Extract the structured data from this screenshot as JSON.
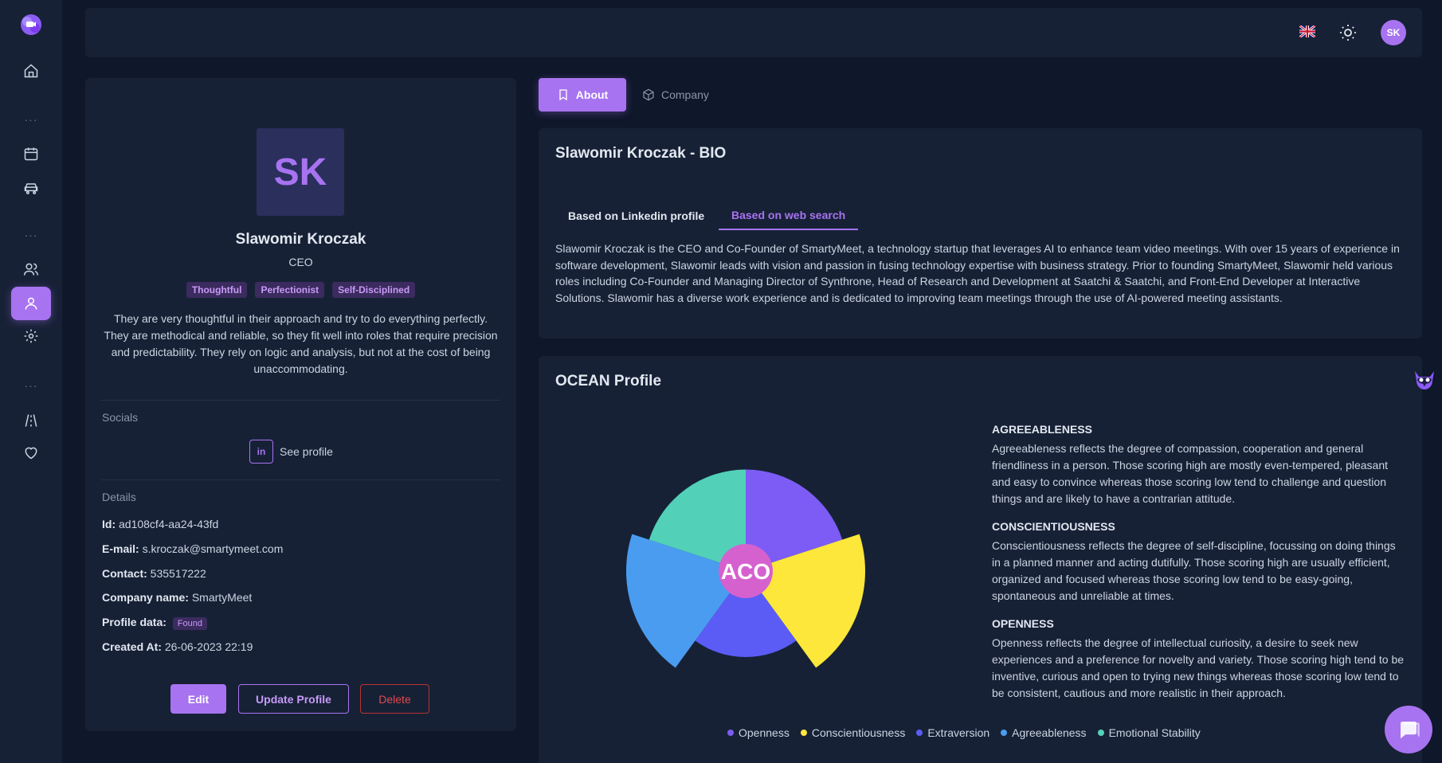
{
  "topbar": {
    "avatar_initials": "SK",
    "flag": "uk-flag-icon",
    "theme_icon": "sun-icon"
  },
  "sidebar": {
    "items": [
      "home-icon",
      "calendar-icon",
      "car-icon",
      "users-icon",
      "user-icon",
      "settings-icon",
      "road-icon",
      "heart-icon"
    ],
    "active": "user-icon"
  },
  "profile": {
    "initials": "SK",
    "name": "Slawomir Kroczak",
    "role": "CEO",
    "tags": [
      "Thoughtful",
      "Perfectionist",
      "Self-Disciplined"
    ],
    "description": "They are very thoughtful in their approach and try to do everything perfectly. They are methodical and reliable, so they fit well into roles that require precision and predictability. They rely on logic and analysis, but not at the cost of being unaccommodating.",
    "socials_label": "Socials",
    "social_icon_text": "in",
    "see_profile": "See profile",
    "details_label": "Details",
    "details": {
      "id_label": "Id:",
      "id": "ad108cf4-aa24-43fd",
      "email_label": "E-mail:",
      "email": "s.kroczak@smartymeet.com",
      "contact_label": "Contact:",
      "contact": "535517222",
      "company_label": "Company name:",
      "company": "SmartyMeet",
      "profile_data_label": "Profile data:",
      "profile_data": "Found",
      "created_label": "Created At:",
      "created": "26-06-2023 22:19"
    },
    "buttons": {
      "edit": "Edit",
      "update": "Update Profile",
      "delete": "Delete"
    }
  },
  "tabs": {
    "about": "About",
    "company": "Company"
  },
  "bio": {
    "title": "Slawomir Kroczak - BIO",
    "tab_linkedin": "Based on Linkedin profile",
    "tab_web": "Based on web search",
    "text": "Slawomir Kroczak is the CEO and Co-Founder of SmartyMeet, a technology startup that leverages AI to enhance team video meetings. With over 15 years of experience in software development, Slawomir leads with vision and passion in fusing technology expertise with business strategy. Prior to founding SmartyMeet, Slawomir held various roles including Co-Founder and Managing Director of Synthrone, Head of Research and Development at Saatchi & Saatchi, and Front-End Developer at Interactive Solutions. Slawomir has a diverse work experience and is dedicated to improving team meetings through the use of AI-powered meeting assistants."
  },
  "ocean": {
    "title": "OCEAN Profile",
    "center_label": "ACO",
    "traits": [
      {
        "name": "AGREEABLENESS",
        "text": "Agreeableness reflects the degree of compassion, cooperation and general friendliness in a person. Those scoring high are mostly even-tempered, pleasant and easy to convince whereas those scoring low tend to challenge and question things and are likely to have a contrarian attitude."
      },
      {
        "name": "CONSCIENTIOUSNESS",
        "text": "Conscientiousness reflects the degree of self-discipline, focussing on doing things in a planned manner and acting dutifully. Those scoring high are usually efficient, organized and focused whereas those scoring low tend to be easy-going, spontaneous and unreliable at times."
      },
      {
        "name": "OPENNESS",
        "text": "Openness reflects the degree of intellectual curiosity, a desire to seek new experiences and a preference for novelty and variety. Those scoring high tend to be inventive, curious and open to trying new things whereas those scoring low tend to be consistent, cautious and more realistic in their approach."
      }
    ],
    "legend": [
      {
        "name": "Openness",
        "color": "#7c5cf5"
      },
      {
        "name": "Conscientiousness",
        "color": "#fde73a"
      },
      {
        "name": "Extraversion",
        "color": "#5b5cf6"
      },
      {
        "name": "Agreeableness",
        "color": "#4a9cf0"
      },
      {
        "name": "Emotional Stability",
        "color": "#52d1b8"
      }
    ]
  },
  "chart_data": {
    "type": "polar-area",
    "title": "OCEAN Profile",
    "categories": [
      "Openness",
      "Conscientiousness",
      "Extraversion",
      "Agreeableness",
      "Emotional Stability"
    ],
    "values": [
      0.85,
      1.0,
      0.72,
      1.0,
      0.85
    ],
    "center_label": "ACO"
  }
}
